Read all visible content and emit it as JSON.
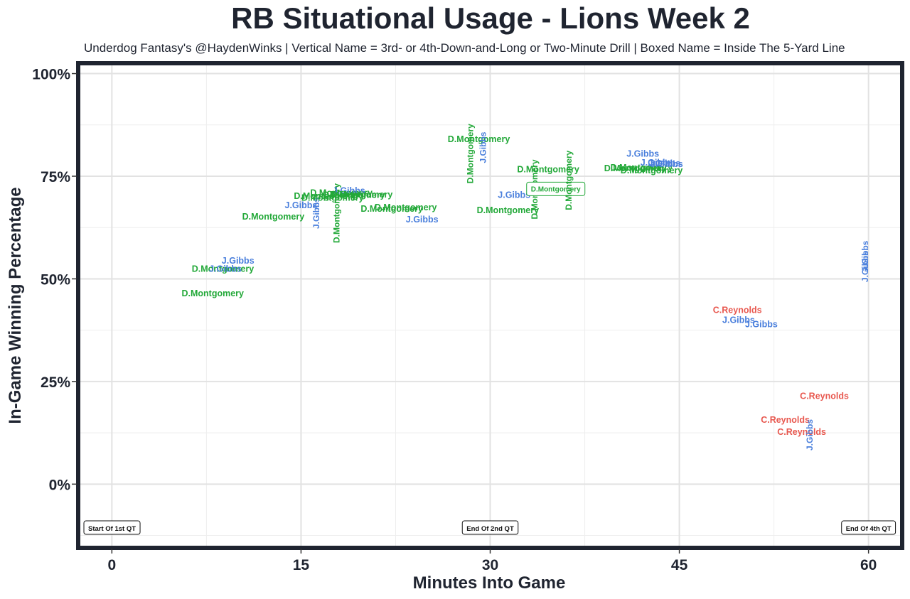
{
  "title": "RB Situational Usage - Lions Week 2",
  "subtitle": "Underdog Fantasy's @HaydenWinks | Vertical Name = 3rd- or 4th-Down-and-Long or Two-Minute Drill | Boxed Name = Inside The 5-Yard Line",
  "chart_data": {
    "type": "scatter",
    "title": "RB Situational Usage - Lions Week 2",
    "xlabel": "Minutes Into Game",
    "ylabel": "In-Game Winning Percentage",
    "xlim": [
      -2.5,
      62.5
    ],
    "ylim": [
      -15,
      102
    ],
    "xticks": [
      0,
      15,
      30,
      45,
      60
    ],
    "xtick_labels": [
      "0",
      "15",
      "30",
      "45",
      "60"
    ],
    "yticks": [
      0,
      25,
      50,
      75,
      100
    ],
    "ytick_labels": [
      "0%",
      "25%",
      "50%",
      "75%",
      "100%"
    ],
    "grid": true,
    "colors": {
      "D.Montgomery": "#22a838",
      "J.Gibbs": "#4a7fdc",
      "C.Reynolds": "#e8584f"
    },
    "points": [
      {
        "x": 8,
        "y": 46.5,
        "label": "D.Montgomery"
      },
      {
        "x": 8.8,
        "y": 52.5,
        "label": "D.Montgomery"
      },
      {
        "x": 9.0,
        "y": 52.5,
        "label": "J.Gibbs"
      },
      {
        "x": 10.0,
        "y": 54.5,
        "label": "J.Gibbs"
      },
      {
        "x": 12.8,
        "y": 65.2,
        "label": "D.Montgomery"
      },
      {
        "x": 15.0,
        "y": 68.0,
        "label": "J.Gibbs"
      },
      {
        "x": 16.2,
        "y": 66.0,
        "label": "J.Gibbs",
        "vertical": true
      },
      {
        "x": 16.9,
        "y": 70.2,
        "label": "D.Montgomery"
      },
      {
        "x": 17.5,
        "y": 69.8,
        "label": "D.Montgomery"
      },
      {
        "x": 17.8,
        "y": 66.0,
        "label": "D.Montgomery",
        "vertical": true
      },
      {
        "x": 18.2,
        "y": 71.0,
        "label": "D.Montgomery"
      },
      {
        "x": 18.8,
        "y": 71.5,
        "label": "J.Gibbs"
      },
      {
        "x": 19.2,
        "y": 70.5,
        "label": "D.Montgomery"
      },
      {
        "x": 19.8,
        "y": 70.6,
        "label": "D.Montgomery"
      },
      {
        "x": 22.2,
        "y": 67.1,
        "label": "D.Montgomery"
      },
      {
        "x": 23.3,
        "y": 67.5,
        "label": "D.Montgomery"
      },
      {
        "x": 24.6,
        "y": 64.5,
        "label": "J.Gibbs"
      },
      {
        "x": 28.4,
        "y": 80.5,
        "label": "D.Montgomery",
        "vertical": true
      },
      {
        "x": 29.1,
        "y": 84.1,
        "label": "D.Montgomery"
      },
      {
        "x": 29.4,
        "y": 82.0,
        "label": "J.Gibbs",
        "vertical": true
      },
      {
        "x": 31.4,
        "y": 66.8,
        "label": "D.Montgomery"
      },
      {
        "x": 31.9,
        "y": 70.5,
        "label": "J.Gibbs"
      },
      {
        "x": 33.5,
        "y": 71.8,
        "label": "D.Montgomery",
        "vertical": true
      },
      {
        "x": 34.6,
        "y": 76.7,
        "label": "D.Montgomery"
      },
      {
        "x": 35.2,
        "y": 72.0,
        "label": "D.Montgomery",
        "boxed": true
      },
      {
        "x": 36.2,
        "y": 74.0,
        "label": "D.Montgomery",
        "vertical": true
      },
      {
        "x": 41.5,
        "y": 77.0,
        "label": "D.Montgomery"
      },
      {
        "x": 42.0,
        "y": 77.2,
        "label": "D.Montgomery"
      },
      {
        "x": 42.1,
        "y": 80.5,
        "label": "J.Gibbs"
      },
      {
        "x": 42.8,
        "y": 76.5,
        "label": "D.Montgomery"
      },
      {
        "x": 43.2,
        "y": 78.4,
        "label": "J.Gibbs"
      },
      {
        "x": 43.8,
        "y": 78.2,
        "label": "J.Gibbs"
      },
      {
        "x": 44.0,
        "y": 78.0,
        "label": "J.Gibbs"
      },
      {
        "x": 49.6,
        "y": 42.5,
        "label": "C.Reynolds"
      },
      {
        "x": 49.7,
        "y": 40.0,
        "label": "J.Gibbs"
      },
      {
        "x": 51.5,
        "y": 39.0,
        "label": "J.Gibbs"
      },
      {
        "x": 53.4,
        "y": 15.7,
        "label": "C.Reynolds"
      },
      {
        "x": 54.7,
        "y": 12.8,
        "label": "C.Reynolds"
      },
      {
        "x": 55.3,
        "y": 12.0,
        "label": "J.Gibbs",
        "vertical": true
      },
      {
        "x": 56.5,
        "y": 21.5,
        "label": "C.Reynolds"
      },
      {
        "x": 59.7,
        "y": 55.5,
        "label": "J.Gibbs",
        "vertical": true
      },
      {
        "x": 59.7,
        "y": 53.0,
        "label": "J.Gibbs",
        "vertical": true
      }
    ],
    "annotations": [
      {
        "x": 0,
        "label": "Start Of 1st QT"
      },
      {
        "x": 30,
        "label": "End Of 2nd QT"
      },
      {
        "x": 60,
        "label": "End Of 4th QT"
      }
    ]
  }
}
